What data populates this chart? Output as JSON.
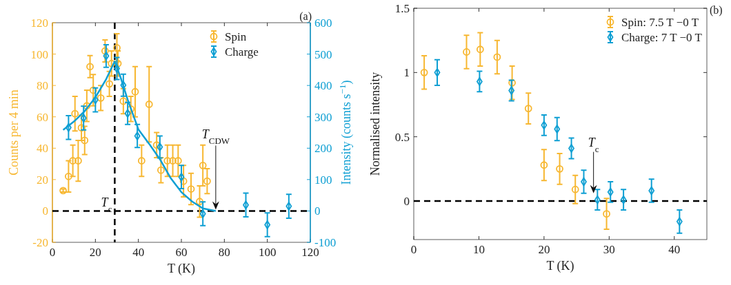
{
  "chart_data": [
    {
      "type": "scatter",
      "ylabel": "Counts per 4 min",
      "y2label": "Intensity (counts s$^{−1}$)",
      "xlabel": "T (K)",
      "xlim": [
        0,
        120
      ],
      "xticks": [
        0,
        20,
        40,
        60,
        80,
        100,
        120
      ],
      "ylim": [
        -20,
        120
      ],
      "yticks": [
        -20,
        0,
        20,
        40,
        60,
        80,
        100,
        120
      ],
      "y2lim": [
        -100,
        600
      ],
      "y2ticks": [
        -100,
        0,
        100,
        200,
        300,
        400,
        500,
        600
      ],
      "legend": "top right",
      "grid": false,
      "series": [
        {
          "name": "Spin",
          "color": "#f7b731",
          "marker": "circle",
          "x": [
            5,
            7.5,
            9.5,
            10.5,
            12,
            13.5,
            15,
            16,
            17.5,
            19,
            22.5,
            24.5,
            26.5,
            27.5,
            30,
            30.5,
            33,
            36.5,
            38.5,
            41.5,
            45,
            48.5,
            50.5,
            53.5,
            56,
            58.5,
            61,
            64.5,
            68.5,
            70,
            72
          ],
          "values": [
            13,
            22,
            32,
            62,
            32,
            53,
            45,
            67,
            92,
            77,
            72,
            102,
            81,
            94,
            104,
            94,
            70,
            65,
            76,
            32,
            68,
            42,
            26,
            32,
            32,
            32,
            19,
            14,
            6,
            29,
            19
          ],
          "errors": [
            1,
            10,
            10,
            11,
            13,
            8,
            9,
            10,
            7,
            10,
            8,
            7,
            8,
            8,
            9,
            8,
            8,
            8,
            16,
            10,
            24,
            8,
            8,
            10,
            10,
            10,
            10,
            10,
            10,
            13,
            8
          ]
        },
        {
          "name": "Charge",
          "color": "#0e9fd3",
          "marker": "diamond",
          "axis": "y2",
          "x": [
            7.5,
            14.5,
            20,
            25,
            30,
            33,
            35,
            39.5,
            50,
            60,
            70,
            90,
            100,
            110
          ],
          "values": [
            266,
            296,
            354,
            494,
            454,
            401,
            311,
            239,
            204,
            108,
            -9,
            19,
            -44,
            15
          ],
          "errors": [
            38,
            38,
            38,
            36,
            35,
            35,
            35,
            37,
            35,
            37,
            38,
            38,
            38,
            38
          ]
        },
        {
          "type": "line",
          "color": "#0e9fd3",
          "marker": "none",
          "axis": "y2",
          "x": [
            5,
            10,
            15,
            20,
            25,
            29,
            32,
            35,
            40,
            45,
            50,
            55,
            60,
            65,
            70,
            76
          ],
          "values": [
            258,
            285,
            318,
            362,
            420,
            477,
            420,
            355,
            260,
            214,
            165,
            105,
            60,
            30,
            8,
            0
          ]
        }
      ],
      "ref_lines": [
        {
          "axis": "y",
          "value": 0,
          "color": "#000000",
          "line_style": "dashed"
        },
        {
          "axis": "x",
          "value": 29,
          "color": "#000000",
          "line_style": "dashed"
        }
      ],
      "annotations": [
        "(a)",
        {
          "text": "T$_{c}$",
          "x": 29,
          "y": 0
        },
        {
          "text": "T$_{CDW}$",
          "x": 76,
          "y": 0
        }
      ]
    },
    {
      "type": "scatter",
      "ylabel": "Normalised intensity",
      "xlabel": "T (K)",
      "xlim": [
        0,
        45
      ],
      "xticks": [
        0,
        10,
        20,
        30,
        40
      ],
      "ylim": [
        -0.3,
        1.5
      ],
      "yticks": [
        0,
        0.5,
        1,
        1.5
      ],
      "legend": "top right",
      "grid": false,
      "series": [
        {
          "name": "Spin: 7.5 T −0 T",
          "color": "#f7b731",
          "marker": "circle",
          "x": [
            1.6,
            8.1,
            10.2,
            12.8,
            15.1,
            17.6,
            20,
            22.4,
            24.8,
            29.6
          ],
          "values": [
            1.0,
            1.16,
            1.18,
            1.12,
            0.92,
            0.72,
            0.28,
            0.25,
            0.09,
            -0.1
          ],
          "errors": [
            0.13,
            0.13,
            0.13,
            0.13,
            0.13,
            0.12,
            0.12,
            0.12,
            0.11,
            0.12
          ]
        },
        {
          "name": "Charge: 7 T −0 T",
          "color": "#0e9fd3",
          "marker": "diamond",
          "x": [
            3.6,
            10.1,
            15,
            20,
            22,
            24.2,
            26.1,
            28.2,
            30.2,
            32.2,
            36.5,
            40.8
          ],
          "values": [
            1.0,
            0.93,
            0.86,
            0.59,
            0.56,
            0.41,
            0.15,
            0.01,
            0.07,
            0.01,
            0.08,
            -0.16
          ],
          "errors": [
            0.1,
            0.08,
            0.08,
            0.08,
            0.09,
            0.08,
            0.09,
            0.08,
            0.08,
            0.08,
            0.09,
            0.09
          ]
        }
      ],
      "ref_lines": [
        {
          "axis": "y",
          "value": 0,
          "color": "#000000",
          "line_style": "dashed"
        }
      ],
      "annotations": [
        "(b)",
        {
          "text": "T$_{c}$",
          "x": 27.6,
          "y": 0.05
        }
      ]
    }
  ]
}
